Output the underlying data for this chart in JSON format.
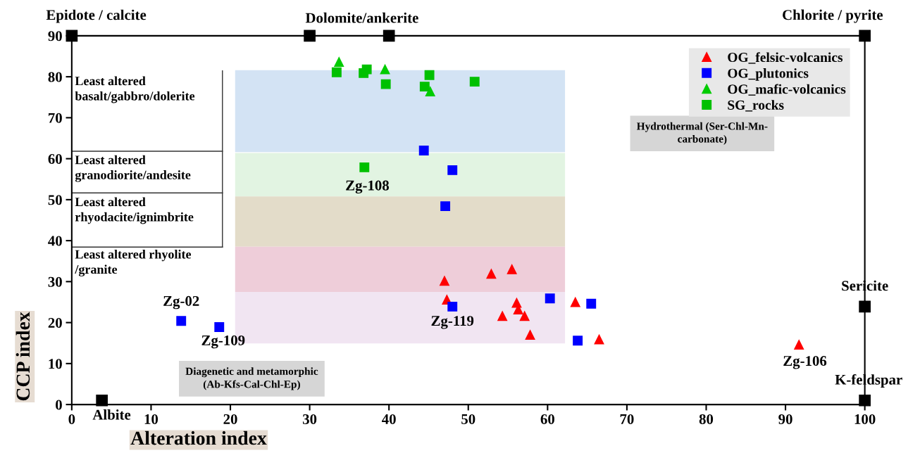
{
  "chart_data": {
    "type": "scatter",
    "xlabel": "Alteration index",
    "ylabel": "CCP index",
    "xlim": [
      0,
      100
    ],
    "ylim": [
      0,
      90
    ],
    "xticks": [
      0,
      10,
      20,
      30,
      40,
      50,
      60,
      70,
      80,
      90,
      100
    ],
    "yticks": [
      0,
      10,
      20,
      30,
      40,
      50,
      60,
      70,
      80,
      90
    ],
    "grid": false,
    "legend": "top right",
    "series": [
      {
        "name": "OG_felsic-volcanics",
        "color": "#ff0000",
        "marker": "triangle",
        "x": [
          47.0,
          47.3,
          52.9,
          55.5,
          56.1,
          56.3,
          54.3,
          57.1,
          57.8,
          63.5,
          66.5,
          91.7
        ],
        "values": [
          30.2,
          25.6,
          31.9,
          33.0,
          24.8,
          23.2,
          21.6,
          21.6,
          17.0,
          25.0,
          15.9,
          14.6
        ]
      },
      {
        "name": "OG_plutonics",
        "color": "#0000ff",
        "marker": "square",
        "x": [
          13.8,
          18.6,
          44.4,
          48.0,
          47.1,
          48.0,
          60.3,
          63.8,
          65.5
        ],
        "values": [
          20.4,
          18.9,
          62.0,
          57.2,
          48.4,
          23.9,
          25.9,
          15.6,
          24.6
        ]
      },
      {
        "name": "OG_mafic-volcanics",
        "color": "#00cc00",
        "marker": "triangle",
        "x": [
          33.7,
          39.5,
          45.2
        ],
        "values": [
          83.6,
          81.8,
          76.4
        ]
      },
      {
        "name": "SG_rocks",
        "color": "#00c000",
        "marker": "square",
        "x": [
          33.4,
          36.8,
          37.2,
          39.6,
          45.1,
          44.5,
          50.8,
          36.9
        ],
        "values": [
          81.1,
          80.9,
          81.8,
          78.2,
          80.4,
          77.6,
          78.8,
          57.9
        ]
      },
      {
        "color": "#000000",
        "marker": "square",
        "x": [
          0,
          30,
          40,
          100,
          100,
          100,
          3.8
        ],
        "values": [
          90,
          90,
          90,
          90,
          23.9,
          1.0,
          1.0
        ]
      }
    ],
    "bands": [
      {
        "axis": "y",
        "from": 61.6,
        "to": 81.6,
        "color": "#d3e3f4"
      },
      {
        "axis": "y",
        "from": 50.8,
        "to": 61.4,
        "color": "#e2f4e2"
      },
      {
        "axis": "y",
        "from": 38.5,
        "to": 50.8,
        "color": "#e3dcc9"
      },
      {
        "axis": "y",
        "from": 27.5,
        "to": 38.5,
        "color": "#eecdd9"
      },
      {
        "axis": "y",
        "from": 14.9,
        "to": 27.5,
        "color": "#f1e5f2"
      }
    ],
    "annotations": [
      {
        "text": "Epidote / calcite",
        "x": 0,
        "y": 90
      },
      "Dolomite/ankerite",
      {
        "text": "Chlorite / pyrite",
        "x": 100,
        "y": 90
      },
      {
        "text": "Sericite",
        "x": 100,
        "y": 23.9
      },
      {
        "text": "K-feldspar",
        "x": 100,
        "y": 1.0
      },
      {
        "text": "Albite",
        "x": 3.8,
        "y": 1.0
      },
      {
        "text": "Zg-02",
        "x": 13.8,
        "y": 20.4
      },
      {
        "text": "Zg-109",
        "x": 18.6,
        "y": 18.9
      },
      {
        "text": "Zg-108",
        "x": 36.9,
        "y": 57.9
      },
      {
        "text": "Zg-119",
        "x": 48.0,
        "y": 23.9
      },
      {
        "text": "Zg-106",
        "x": 91.7,
        "y": 14.6
      },
      "Hydrothermal (Ser-Chl-Mn-\ncarbonate)",
      "Diagenetic and metamorphic\n(Ab-Kfs-Cal-Chl-Ep)",
      "Least altered\nbasalt/gabbro/dolerite",
      "Least altered\ngranodiorite/andesite",
      "Least altered\nrhyodacite/ignimbrite",
      "Least altered rhyolite\n/granite"
    ]
  }
}
